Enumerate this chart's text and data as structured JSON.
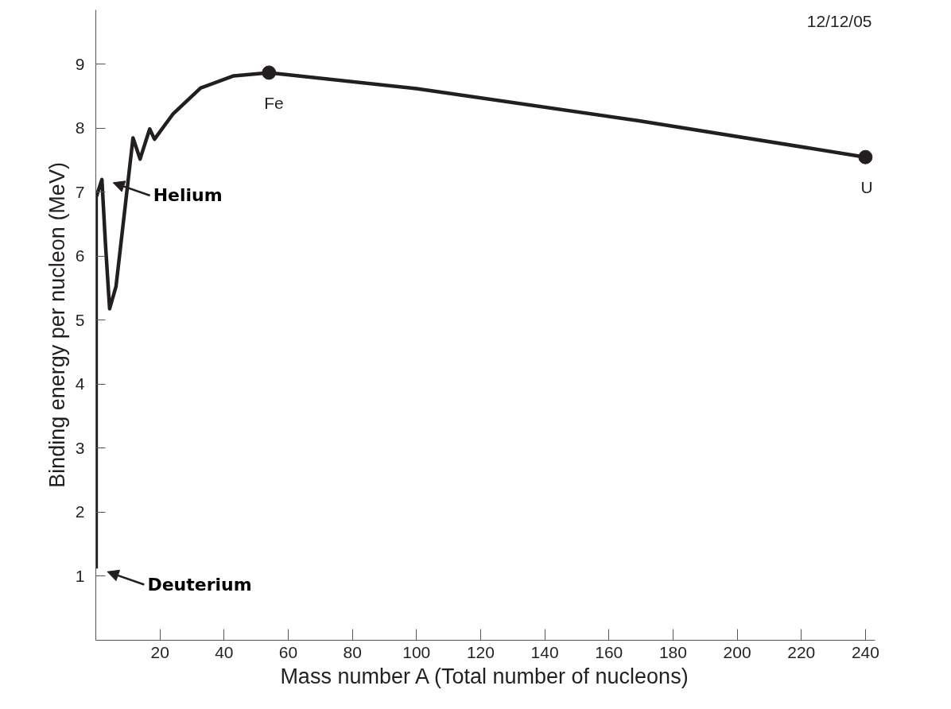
{
  "chart_data": {
    "type": "line",
    "xlabel": "Mass number A (Total number of nucleons)",
    "ylabel": "Binding energy per nucleon (MeV)",
    "xlim": [
      0,
      243
    ],
    "ylim": [
      0,
      9.85
    ],
    "xticks": [
      20,
      40,
      60,
      80,
      100,
      120,
      140,
      160,
      180,
      200,
      220,
      240
    ],
    "yticks": [
      1,
      2,
      3,
      4,
      5,
      6,
      7,
      8,
      9
    ],
    "grid": false,
    "series": [
      {
        "color": "#231f20",
        "line_style": "solid",
        "marker": "none",
        "x": [
          0.1,
          0.1,
          1.9,
          3.0,
          4.3,
          6.3,
          11.6,
          13.8,
          16.8,
          18.3,
          24,
          32.7,
          43,
          54,
          100,
          169,
          240
        ],
        "values": [
          1.12,
          6.92,
          7.2,
          6.2,
          5.18,
          5.53,
          7.85,
          7.52,
          7.99,
          7.83,
          8.22,
          8.63,
          8.82,
          8.87,
          8.62,
          8.12,
          7.55
        ]
      },
      {
        "type": "scatter",
        "color": "#231f20",
        "marker": "circle",
        "x": [
          54,
          240
        ],
        "values": [
          8.87,
          7.55
        ]
      }
    ],
    "annotations": [
      "12/12/05",
      {
        "text": "Fe",
        "x": 54,
        "y": 8.87
      },
      {
        "text": "U",
        "x": 240,
        "y": 7.55
      },
      {
        "text": "Helium",
        "x": 1.9,
        "y": 7.2
      },
      {
        "text": "Deuterium",
        "x": 0.1,
        "y": 1.12
      }
    ]
  }
}
